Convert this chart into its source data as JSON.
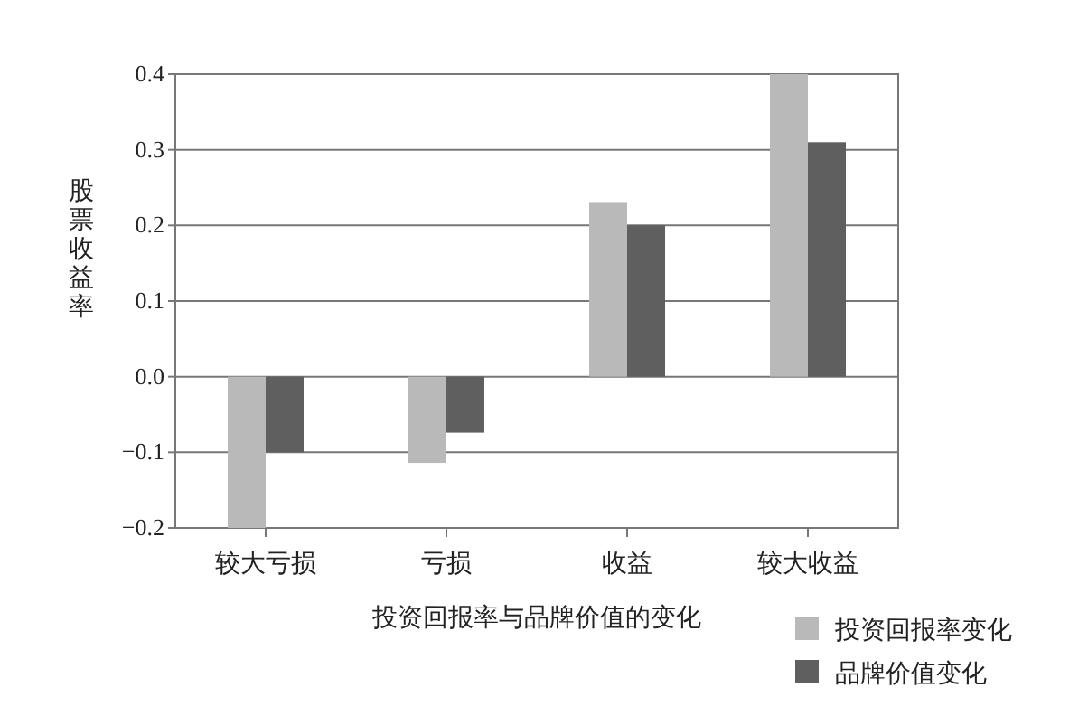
{
  "chart_data": {
    "type": "bar",
    "xlabel": "投资回报率与品牌价值的变化",
    "ylabel": "股票收益率",
    "categories": [
      "较大亏损",
      "亏损",
      "收益",
      "较大收益"
    ],
    "series": [
      {
        "name": "投资回报率变化",
        "color": "#b9b9b9",
        "values": [
          -0.2,
          -0.114,
          0.231,
          0.4
        ]
      },
      {
        "name": "品牌价值变化",
        "color": "#5f5f5f",
        "values": [
          -0.1,
          -0.074,
          0.2,
          0.31
        ]
      }
    ],
    "ylim": [
      -0.2,
      0.4
    ],
    "yticks": [
      {
        "value": -0.2,
        "label": "−0.2"
      },
      {
        "value": -0.1,
        "label": "−0.1"
      },
      {
        "value": 0,
        "label": "0.0"
      },
      {
        "value": 0.1,
        "label": "0.1"
      },
      {
        "value": 0.2,
        "label": "0.2"
      },
      {
        "value": 0.3,
        "label": "0.3"
      },
      {
        "value": 0.4,
        "label": "0.4"
      }
    ],
    "grid": "y",
    "legend": "bottom right"
  }
}
